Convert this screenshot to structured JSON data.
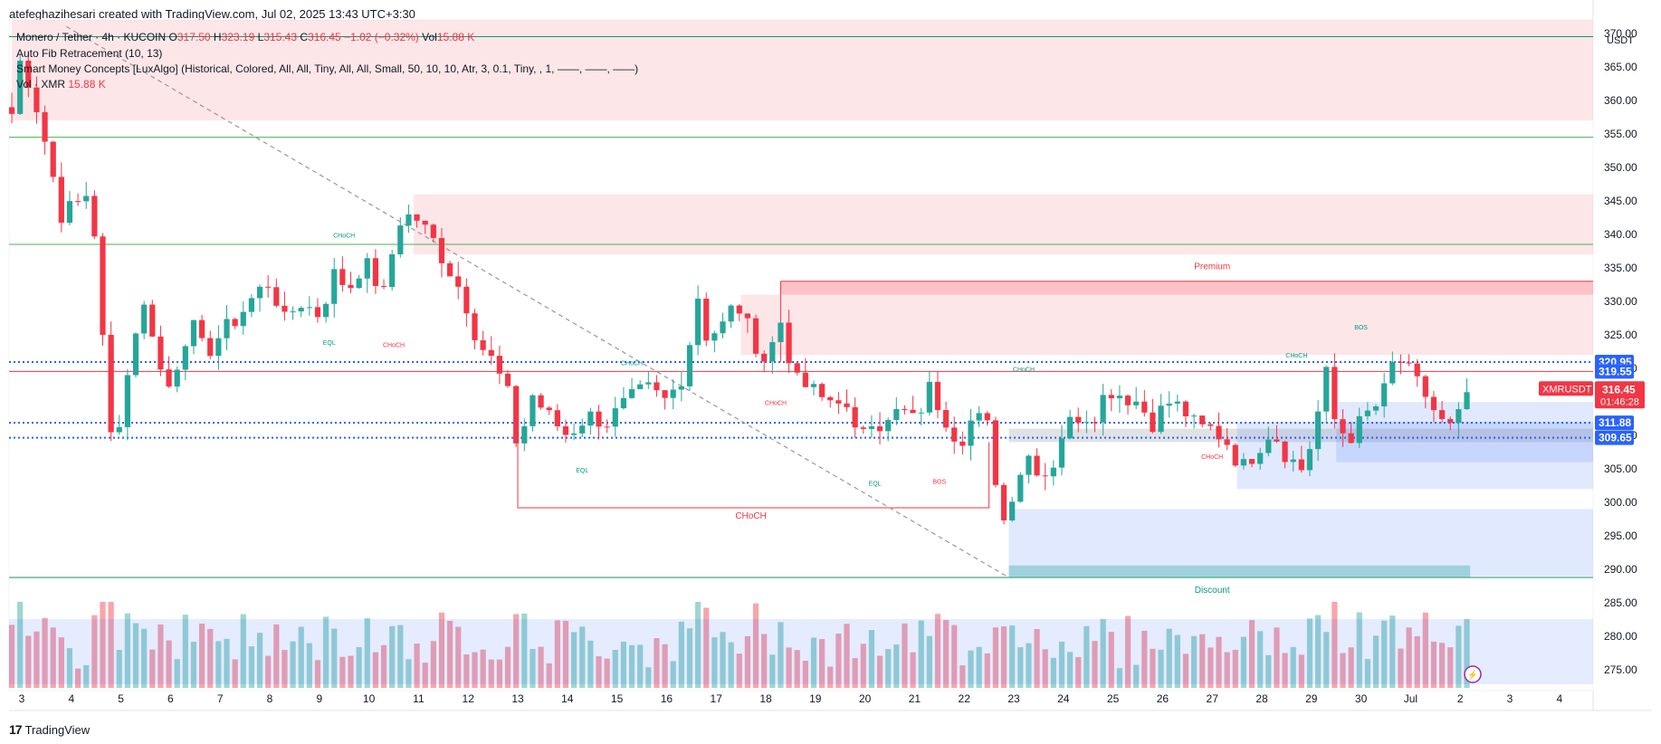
{
  "header": {
    "credit": "atefeghazihesari created with TradingView.com, Jul 02, 2025 13:43 UTC+3:30"
  },
  "legend": {
    "symbol": "Monero / Tether · 4h · KUCOIN",
    "ohlc": {
      "open_label": "O",
      "open": "317.50",
      "high_label": "H",
      "high": "323.19",
      "low_label": "L",
      "low": "315.43",
      "close_label": "C",
      "close": "316.45",
      "change": "−1.02 (−0.32%)",
      "vol_label": "Vol",
      "vol": "15.88 K"
    },
    "indicator1": "Auto Fib Retracement (10, 13)",
    "indicator2": "Smart Money Concepts [LuxAlgo] (Historical, Colored, All, All, Tiny, All, All, Small, 50, 10, 10, Atr, 3, 0.1, Tiny, , 1, ——, ——, ——)",
    "indicator3_label": "Vol · XMR",
    "indicator3_value": "15.88 K"
  },
  "logo": {
    "mark": "17",
    "text": "TradingView"
  },
  "colors": {
    "up": "#26a69a",
    "down": "#f23645",
    "premium_zone": "#f7c6c9",
    "discount_zone": "#c9daf8",
    "fib_line": "#1e8f6f",
    "dotted_blue": "#2962ff",
    "price_tag": "#f23645",
    "level_tag": "#2962ff"
  },
  "chart_data": {
    "type": "candlestick",
    "quote_currency": "USDT",
    "ylim": [
      273,
      372
    ],
    "y_ticks": [
      275.0,
      280.0,
      285.0,
      290.0,
      295.0,
      300.0,
      305.0,
      310.0,
      315.0,
      320.0,
      325.0,
      330.0,
      335.0,
      340.0,
      345.0,
      350.0,
      355.0,
      360.0,
      365.0,
      370.0
    ],
    "x_ticks": [
      {
        "label": "3",
        "day": 3
      },
      {
        "label": "4",
        "day": 4
      },
      {
        "label": "5",
        "day": 5
      },
      {
        "label": "6",
        "day": 6
      },
      {
        "label": "7",
        "day": 7
      },
      {
        "label": "8",
        "day": 8
      },
      {
        "label": "9",
        "day": 9
      },
      {
        "label": "10",
        "day": 10
      },
      {
        "label": "11",
        "day": 11
      },
      {
        "label": "12",
        "day": 12
      },
      {
        "label": "13",
        "day": 13
      },
      {
        "label": "14",
        "day": 14
      },
      {
        "label": "15",
        "day": 15
      },
      {
        "label": "16",
        "day": 16
      },
      {
        "label": "17",
        "day": 17
      },
      {
        "label": "18",
        "day": 18
      },
      {
        "label": "19",
        "day": 19
      },
      {
        "label": "20",
        "day": 20
      },
      {
        "label": "21",
        "day": 21
      },
      {
        "label": "22",
        "day": 22
      },
      {
        "label": "23",
        "day": 23
      },
      {
        "label": "24",
        "day": 24
      },
      {
        "label": "25",
        "day": 25
      },
      {
        "label": "26",
        "day": 26
      },
      {
        "label": "27",
        "day": 27
      },
      {
        "label": "28",
        "day": 28
      },
      {
        "label": "29",
        "day": 29
      },
      {
        "label": "30",
        "day": 30
      },
      {
        "label": "Jul",
        "day": 31
      },
      {
        "label": "2",
        "day": 32
      },
      {
        "label": "3",
        "day": 33
      },
      {
        "label": "4",
        "day": 34
      }
    ],
    "waypoints": [
      [
        2.8,
        358
      ],
      [
        2.95,
        366
      ],
      [
        3.2,
        362
      ],
      [
        3.5,
        353
      ],
      [
        3.8,
        343
      ],
      [
        4.2,
        345
      ],
      [
        4.4,
        347
      ],
      [
        4.6,
        327
      ],
      [
        4.8,
        310
      ],
      [
        5.0,
        313
      ],
      [
        5.2,
        322
      ],
      [
        5.4,
        330
      ],
      [
        5.6,
        327
      ],
      [
        5.9,
        316
      ],
      [
        6.1,
        320
      ],
      [
        6.4,
        327
      ],
      [
        6.7,
        322
      ],
      [
        7.0,
        325
      ],
      [
        7.4,
        328
      ],
      [
        7.7,
        331
      ],
      [
        8.0,
        333
      ],
      [
        8.3,
        327
      ],
      [
        8.6,
        330
      ],
      [
        9.0,
        328
      ],
      [
        9.3,
        334
      ],
      [
        9.6,
        332
      ],
      [
        9.9,
        336
      ],
      [
        10.3,
        331
      ],
      [
        10.6,
        342
      ],
      [
        10.9,
        343
      ],
      [
        11.3,
        339
      ],
      [
        11.6,
        335
      ],
      [
        11.9,
        331
      ],
      [
        12.2,
        324
      ],
      [
        12.5,
        321
      ],
      [
        12.8,
        316
      ],
      [
        13.0,
        308
      ],
      [
        13.3,
        316
      ],
      [
        13.6,
        313
      ],
      [
        14.0,
        310
      ],
      [
        14.4,
        313
      ],
      [
        14.8,
        312
      ],
      [
        15.2,
        315
      ],
      [
        15.6,
        317
      ],
      [
        16.0,
        315
      ],
      [
        16.4,
        320
      ],
      [
        16.6,
        332
      ],
      [
        16.8,
        325
      ],
      [
        17.1,
        326
      ],
      [
        17.4,
        330
      ],
      [
        17.7,
        325
      ],
      [
        18.0,
        321
      ],
      [
        18.3,
        327
      ],
      [
        18.6,
        318
      ],
      [
        18.9,
        317
      ],
      [
        19.2,
        315
      ],
      [
        19.5,
        316
      ],
      [
        19.8,
        310
      ],
      [
        20.1,
        313
      ],
      [
        20.4,
        311
      ],
      [
        20.7,
        314
      ],
      [
        21.0,
        312
      ],
      [
        21.3,
        317
      ],
      [
        21.6,
        313
      ],
      [
        21.9,
        309
      ],
      [
        22.2,
        313
      ],
      [
        22.5,
        311
      ],
      [
        22.7,
        300
      ],
      [
        22.85,
        296
      ],
      [
        23.0,
        303
      ],
      [
        23.3,
        307
      ],
      [
        23.6,
        304
      ],
      [
        23.8,
        306
      ],
      [
        24.0,
        311
      ],
      [
        24.3,
        313
      ],
      [
        24.6,
        313
      ],
      [
        24.9,
        317
      ],
      [
        25.2,
        316
      ],
      [
        25.5,
        315
      ],
      [
        25.8,
        312
      ],
      [
        26.1,
        315
      ],
      [
        26.4,
        314
      ],
      [
        26.7,
        311
      ],
      [
        27.0,
        311
      ],
      [
        27.3,
        309
      ],
      [
        27.6,
        305
      ],
      [
        27.9,
        308
      ],
      [
        28.2,
        311
      ],
      [
        28.5,
        307
      ],
      [
        28.8,
        305
      ],
      [
        29.0,
        309
      ],
      [
        29.3,
        319
      ],
      [
        29.5,
        311
      ],
      [
        29.8,
        310
      ],
      [
        30.1,
        313
      ],
      [
        30.4,
        315
      ],
      [
        30.7,
        322
      ],
      [
        31.0,
        319
      ],
      [
        31.3,
        316
      ],
      [
        31.6,
        312
      ],
      [
        31.8,
        311
      ],
      [
        32.0,
        313
      ],
      [
        32.15,
        316.45
      ]
    ],
    "volume_bars": "derived from candle sequence, shown as colored histogram at chart bottom",
    "zones": [
      {
        "kind": "supply",
        "x0": 2.8,
        "x1": 35.5,
        "y0": 357,
        "y1": 372
      },
      {
        "kind": "supply",
        "x0": 10.9,
        "x1": 35.5,
        "y0": 337,
        "y1": 346
      },
      {
        "kind": "supply",
        "x0": 17.5,
        "x1": 35.5,
        "y0": 322,
        "y1": 331
      },
      {
        "kind": "premium",
        "x0": 18.3,
        "x1": 35.5,
        "y0": 331,
        "y1": 333
      },
      {
        "kind": "demand",
        "x0": 22.9,
        "x1": 35.5,
        "y0": 289,
        "y1": 299
      },
      {
        "kind": "demand",
        "x0": 27.5,
        "x1": 35.5,
        "y0": 302,
        "y1": 312
      },
      {
        "kind": "demand",
        "x0": 29.5,
        "x1": 35.5,
        "y0": 306,
        "y1": 315
      },
      {
        "kind": "equilibrium",
        "x0": 22.9,
        "x1": 35.5,
        "y0": 309,
        "y1": 311
      }
    ],
    "horizontal_lines": [
      {
        "y": 369.5,
        "style": "solid",
        "color": "fib"
      },
      {
        "y": 354.5,
        "style": "solid",
        "color": "fibgreen"
      },
      {
        "y": 338.5,
        "style": "solid",
        "color": "fibgreen"
      },
      {
        "y": 320.95,
        "style": "dotted",
        "color": "blue"
      },
      {
        "y": 319.55,
        "style": "solid",
        "color": "red"
      },
      {
        "y": 311.88,
        "style": "dotted",
        "color": "blue"
      },
      {
        "y": 309.65,
        "style": "dotted",
        "color": "blue"
      },
      {
        "y": 288.8,
        "style": "solid",
        "color": "fib"
      }
    ],
    "trendline": {
      "from": [
        3.9,
        371
      ],
      "to": [
        22.9,
        288.8
      ]
    },
    "structure_labels": [
      {
        "text": "CHoCH",
        "day": 9.5,
        "y": 339.5,
        "color": "green"
      },
      {
        "text": "EQL",
        "day": 9.2,
        "y": 323.5,
        "color": "green"
      },
      {
        "text": "CHoCH",
        "day": 10.5,
        "y": 323.2,
        "color": "red"
      },
      {
        "text": "CHoCH",
        "day": 15.3,
        "y": 320.5,
        "color": "green"
      },
      {
        "text": "CHoCH",
        "day": 18.2,
        "y": 314.5,
        "color": "red"
      },
      {
        "text": "EQL",
        "day": 14.3,
        "y": 304.5,
        "color": "green"
      },
      {
        "text": "CHoCH",
        "day": 17.7,
        "y": 297.6,
        "color": "red"
      },
      {
        "text": "EQL",
        "day": 20.2,
        "y": 302.5,
        "color": "green"
      },
      {
        "text": "BOS",
        "day": 21.5,
        "y": 302.8,
        "color": "red"
      },
      {
        "text": "CHoCH",
        "day": 23.2,
        "y": 319.5,
        "color": "green"
      },
      {
        "text": "CHoCH",
        "day": 27.0,
        "y": 306.5,
        "color": "red"
      },
      {
        "text": "CHoCH",
        "day": 28.7,
        "y": 321.6,
        "color": "green"
      },
      {
        "text": "BOS",
        "day": 30.0,
        "y": 325.8,
        "color": "green"
      },
      {
        "text": "Premium",
        "day": 27.0,
        "y": 334.8,
        "color": "red"
      },
      {
        "text": "Discount",
        "day": 27.0,
        "y": 286.5,
        "color": "green"
      }
    ],
    "price_tags": [
      {
        "text": "320.95",
        "y": 320.95,
        "color": "blue"
      },
      {
        "text": "319.55",
        "y": 319.55,
        "color": "blue"
      },
      {
        "text": "311.88",
        "y": 311.88,
        "color": "blue"
      },
      {
        "text": "309.65",
        "y": 309.65,
        "color": "blue"
      }
    ],
    "last_price": {
      "symbol": "XMRUSDT",
      "price": "316.45",
      "countdown": "01:46:28",
      "y": 316.45
    }
  }
}
